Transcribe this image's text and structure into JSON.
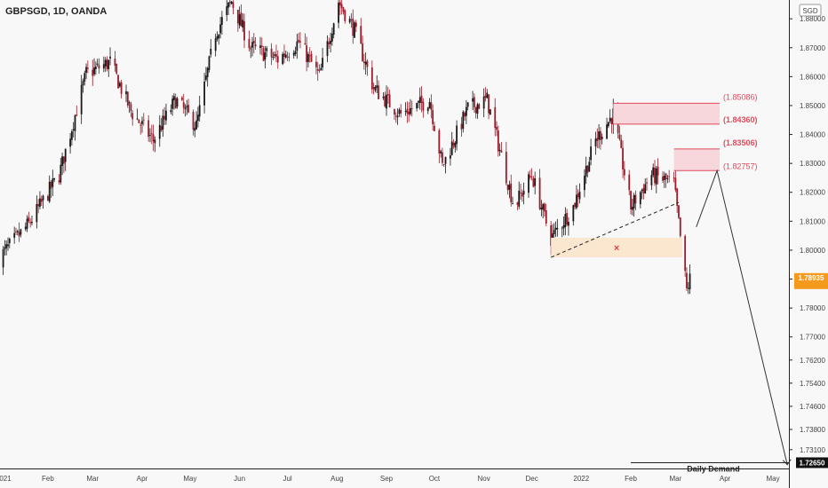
{
  "header": {
    "title": "GBPSGD, 1D, OANDA"
  },
  "currency_button": {
    "label": "SGD"
  },
  "axis_label_top": "1.",
  "colors": {
    "up": "#1a1a1a",
    "down": "#9b1c2a",
    "resistance": "#e24a5c",
    "resistance_fill": "#f7d6dc",
    "support_fill": "#fbe6cf",
    "price_badge": "#f59a1c",
    "target_badge": "#111111",
    "grid_axis": "#222222"
  },
  "chart_data": {
    "type": "candlestick",
    "symbol": "GBPSGD",
    "timeframe": "1D",
    "broker": "OANDA",
    "ylim": [
      1.7245,
      1.8865
    ],
    "y_ticks": [
      "1.88000",
      "1.87000",
      "1.86000",
      "1.85000",
      "1.84000",
      "1.83000",
      "1.82000",
      "1.81000",
      "1.80000",
      "1.79000",
      "1.78000",
      "1.77000",
      "1.76200",
      "1.75400",
      "1.74600",
      "1.73800",
      "1.73100"
    ],
    "x_ticks": [
      "021",
      "Feb",
      "Mar",
      "Apr",
      "May",
      "Jun",
      "Jul",
      "Aug",
      "Sep",
      "Oct",
      "Nov",
      "Dec",
      "2022",
      "Feb",
      "Mar",
      "Apr",
      "May"
    ],
    "price_path": [
      [
        "2021-01-01",
        1.797
      ],
      [
        "2021-01-20",
        1.809
      ],
      [
        "2021-02-08",
        1.826
      ],
      [
        "2021-02-25",
        1.861
      ],
      [
        "2021-03-12",
        1.865
      ],
      [
        "2021-03-25",
        1.848
      ],
      [
        "2021-04-08",
        1.838
      ],
      [
        "2021-04-22",
        1.852
      ],
      [
        "2021-05-05",
        1.843
      ],
      [
        "2021-05-17",
        1.875
      ],
      [
        "2021-05-27",
        1.886
      ],
      [
        "2021-06-08",
        1.87
      ],
      [
        "2021-06-25",
        1.866
      ],
      [
        "2021-07-08",
        1.872
      ],
      [
        "2021-07-21",
        1.86
      ],
      [
        "2021-08-02",
        1.886
      ],
      [
        "2021-08-12",
        1.876
      ],
      [
        "2021-08-24",
        1.856
      ],
      [
        "2021-09-10",
        1.847
      ],
      [
        "2021-09-28",
        1.852
      ],
      [
        "2021-10-06",
        1.829
      ],
      [
        "2021-10-22",
        1.849
      ],
      [
        "2021-11-03",
        1.852
      ],
      [
        "2021-11-20",
        1.815
      ],
      [
        "2021-12-01",
        1.826
      ],
      [
        "2021-12-13",
        1.804
      ],
      [
        "2021-12-27",
        1.815
      ],
      [
        "2022-01-10",
        1.838
      ],
      [
        "2022-01-21",
        1.847
      ],
      [
        "2022-02-01",
        1.815
      ],
      [
        "2022-02-14",
        1.826
      ],
      [
        "2022-02-28",
        1.823
      ],
      [
        "2022-03-08",
        1.786
      ],
      [
        "2022-03-10",
        1.79
      ]
    ],
    "resistance_zones": [
      {
        "label_top": "(1.85086)",
        "label_bottom": "(1.84360)",
        "top": 1.8508,
        "bottom": 1.8436
      },
      {
        "label_top": "(1.83506)",
        "label_bottom": "(1.82757)",
        "top": 1.835,
        "bottom": 1.8275
      }
    ],
    "support_zone": {
      "top": 1.8043,
      "bottom": 1.7975,
      "marker": "×"
    },
    "trendline_points": [
      [
        "2021-12-13",
        1.7975
      ],
      [
        "2022-03-03",
        1.8165
      ]
    ],
    "projection_path": [
      [
        "2022-03-14",
        1.808
      ],
      [
        "2022-03-27",
        1.8275
      ],
      [
        "2022-05-10",
        1.7258
      ]
    ],
    "current_price": {
      "label": "1.78935",
      "value": 1.7893
    },
    "daily_demand": {
      "label": "Daily Demand",
      "badge": "1.72650",
      "value": 1.7265
    }
  }
}
